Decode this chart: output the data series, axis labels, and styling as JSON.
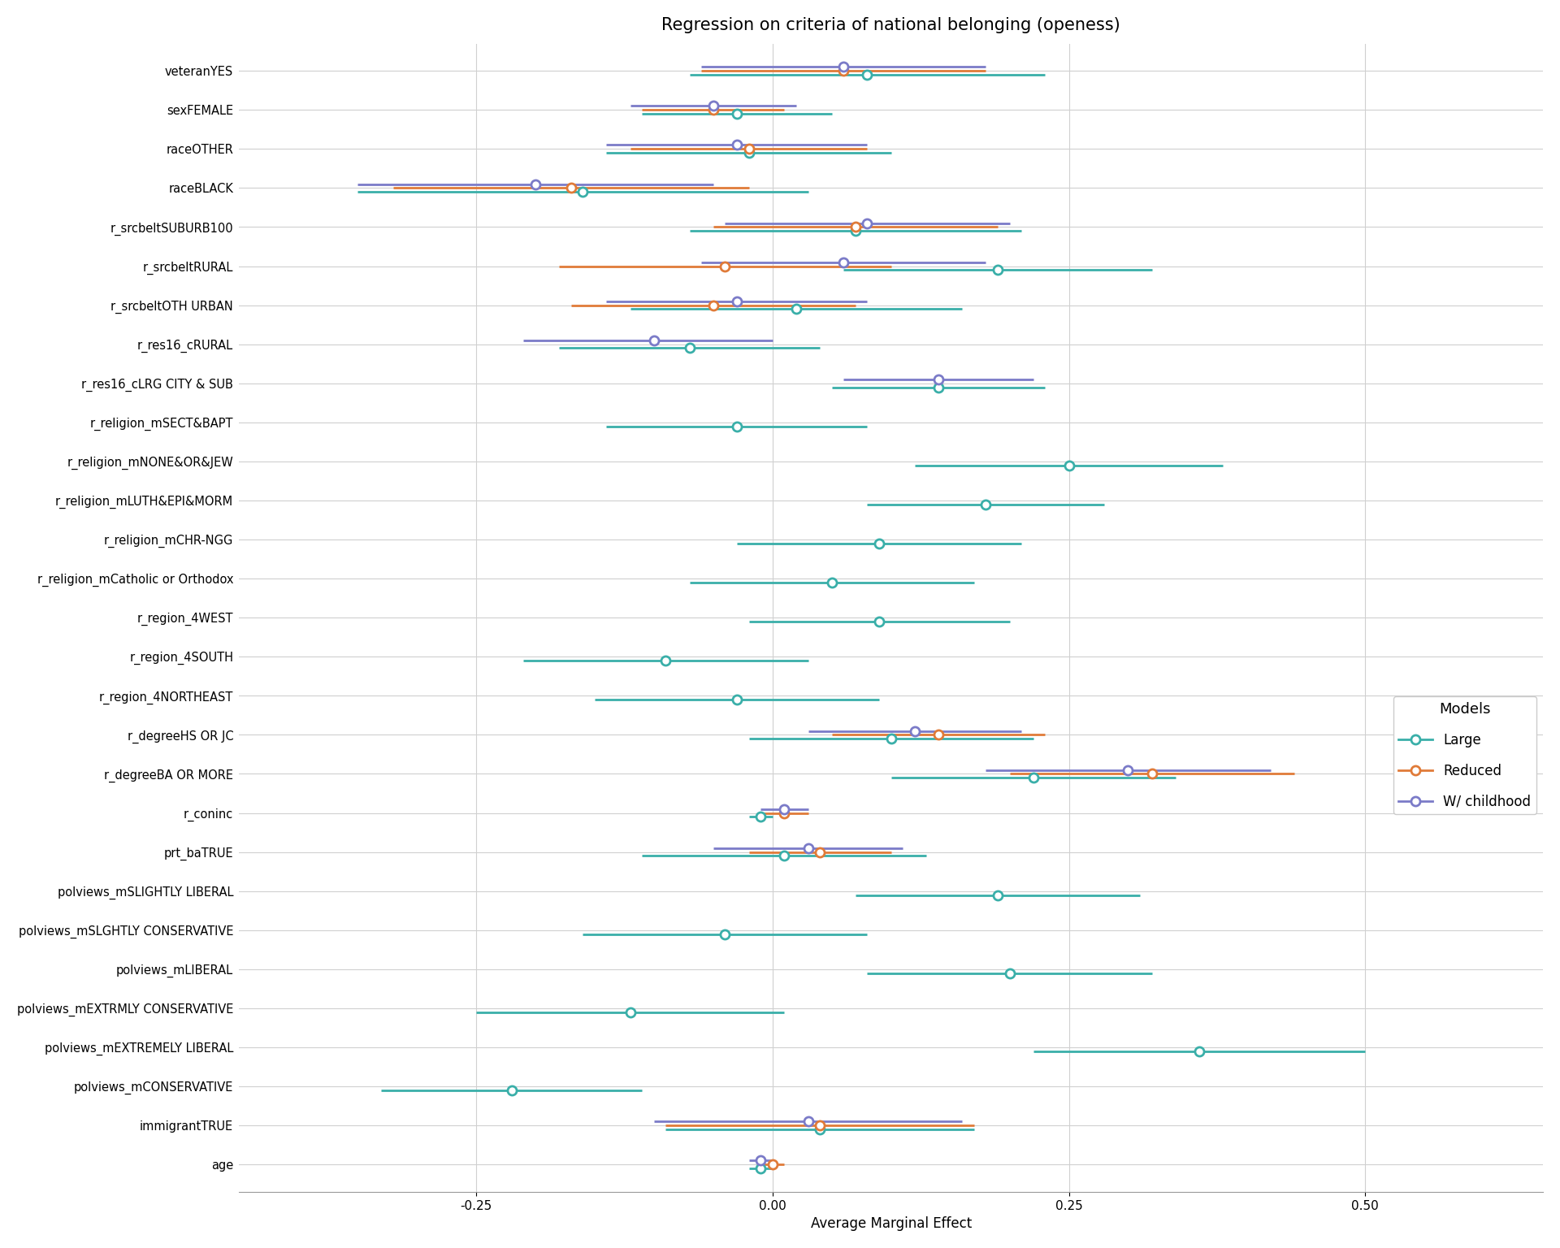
{
  "title": "Regression on criteria of national belonging (openess)",
  "xlabel": "Average Marginal Effect",
  "xlim": [
    -0.45,
    0.65
  ],
  "xticks": [
    -0.25,
    0.0,
    0.25,
    0.5
  ],
  "xtick_labels": [
    "-0.25",
    "0.00",
    "0.25",
    "0.50"
  ],
  "background_color": "#ffffff",
  "grid_color": "#d0d0d0",
  "colors": {
    "Large": "#3aafa9",
    "Reduced": "#e07b39",
    "W/ childhood": "#7b7bc8"
  },
  "y_labels": [
    "veteranYES",
    "sexFEMALE",
    "raceOTHER",
    "raceBLACK",
    "r_srcbeltSUBURB100",
    "r_srcbeltRURAL",
    "r_srcbeltOTH URBAN",
    "r_res16_cRURAL",
    "r_res16_cLRG CITY & SUB",
    "r_religion_mSECT&BAPT",
    "r_religion_mNONE&OR&JEW",
    "r_religion_mLUTH&EPI&MORM",
    "r_religion_mCHR-NGG",
    "r_religion_mCatholic or Orthodox",
    "r_region_4WEST",
    "r_region_4SOUTH",
    "r_region_4NORTHEAST",
    "r_degreeHS OR JC",
    "r_degreeBA OR MORE",
    "r_coninc",
    "prt_baTRUE",
    "polviews_mSLIGHTLY LIBERAL",
    "polviews_mSLGHTLY CONSERVATIVE",
    "polviews_mLIBERAL",
    "polviews_mEXTRMLY CONSERVATIVE",
    "polviews_mEXTREMELY LIBERAL",
    "polviews_mCONSERVATIVE",
    "immigrantTRUE",
    "age"
  ],
  "models": {
    "Large": {
      "est": [
        0.08,
        -0.03,
        -0.02,
        -0.16,
        0.07,
        0.19,
        0.02,
        -0.07,
        0.14,
        -0.03,
        0.25,
        0.18,
        0.09,
        0.05,
        0.09,
        -0.09,
        -0.03,
        0.1,
        0.22,
        -0.01,
        0.01,
        0.19,
        -0.04,
        0.2,
        -0.12,
        0.36,
        -0.22,
        0.04,
        -0.01
      ],
      "lo": [
        -0.07,
        -0.11,
        -0.14,
        -0.35,
        -0.07,
        0.06,
        -0.12,
        -0.18,
        0.05,
        -0.14,
        0.12,
        0.08,
        -0.03,
        -0.07,
        -0.02,
        -0.21,
        -0.15,
        -0.02,
        0.1,
        -0.02,
        -0.11,
        0.07,
        -0.16,
        0.08,
        -0.25,
        0.22,
        -0.33,
        -0.09,
        -0.02
      ],
      "hi": [
        0.23,
        0.05,
        0.1,
        0.03,
        0.21,
        0.32,
        0.16,
        0.04,
        0.23,
        0.08,
        0.38,
        0.28,
        0.21,
        0.17,
        0.2,
        0.03,
        0.09,
        0.22,
        0.34,
        0.0,
        0.13,
        0.31,
        0.08,
        0.32,
        0.01,
        0.5,
        -0.11,
        0.17,
        0.0
      ]
    },
    "Reduced": {
      "est": [
        0.06,
        -0.05,
        -0.02,
        -0.17,
        0.07,
        -0.04,
        -0.05,
        null,
        null,
        null,
        null,
        null,
        null,
        null,
        null,
        null,
        null,
        0.14,
        0.32,
        0.01,
        0.04,
        null,
        null,
        null,
        null,
        null,
        null,
        0.04,
        0.0
      ],
      "lo": [
        -0.06,
        -0.11,
        -0.12,
        -0.32,
        -0.05,
        -0.18,
        -0.17,
        null,
        null,
        null,
        null,
        null,
        null,
        null,
        null,
        null,
        null,
        0.05,
        0.2,
        -0.01,
        -0.02,
        null,
        null,
        null,
        null,
        null,
        null,
        -0.09,
        -0.01
      ],
      "hi": [
        0.18,
        0.01,
        0.08,
        -0.02,
        0.19,
        0.1,
        0.07,
        null,
        null,
        null,
        null,
        null,
        null,
        null,
        null,
        null,
        null,
        0.23,
        0.44,
        0.03,
        0.1,
        null,
        null,
        null,
        null,
        null,
        null,
        0.17,
        0.01
      ]
    },
    "W/ childhood": {
      "est": [
        0.06,
        -0.05,
        -0.03,
        -0.2,
        0.08,
        0.06,
        -0.03,
        -0.1,
        0.14,
        null,
        null,
        null,
        null,
        null,
        null,
        null,
        null,
        0.12,
        0.3,
        0.01,
        0.03,
        null,
        null,
        null,
        null,
        null,
        null,
        0.03,
        -0.01
      ],
      "lo": [
        -0.06,
        -0.12,
        -0.14,
        -0.35,
        -0.04,
        -0.06,
        -0.14,
        -0.21,
        0.06,
        null,
        null,
        null,
        null,
        null,
        null,
        null,
        null,
        0.03,
        0.18,
        -0.01,
        -0.05,
        null,
        null,
        null,
        null,
        null,
        null,
        -0.1,
        -0.02
      ],
      "hi": [
        0.18,
        0.02,
        0.08,
        -0.05,
        0.2,
        0.18,
        0.08,
        -0.0,
        0.22,
        null,
        null,
        null,
        null,
        null,
        null,
        null,
        null,
        0.21,
        0.42,
        0.03,
        0.11,
        null,
        null,
        null,
        null,
        null,
        null,
        0.16,
        0.0
      ]
    }
  },
  "draw_order": [
    "Large",
    "Reduced",
    "W/ childhood"
  ],
  "offsets": {
    "Large": -0.1,
    "Reduced": 0.0,
    "W/ childhood": 0.1
  },
  "marker_size": 8,
  "linewidth": 2.0,
  "title_fontsize": 15,
  "label_fontsize": 10.5,
  "tick_fontsize": 11,
  "legend_fontsize": 12,
  "legend_title_fontsize": 13
}
